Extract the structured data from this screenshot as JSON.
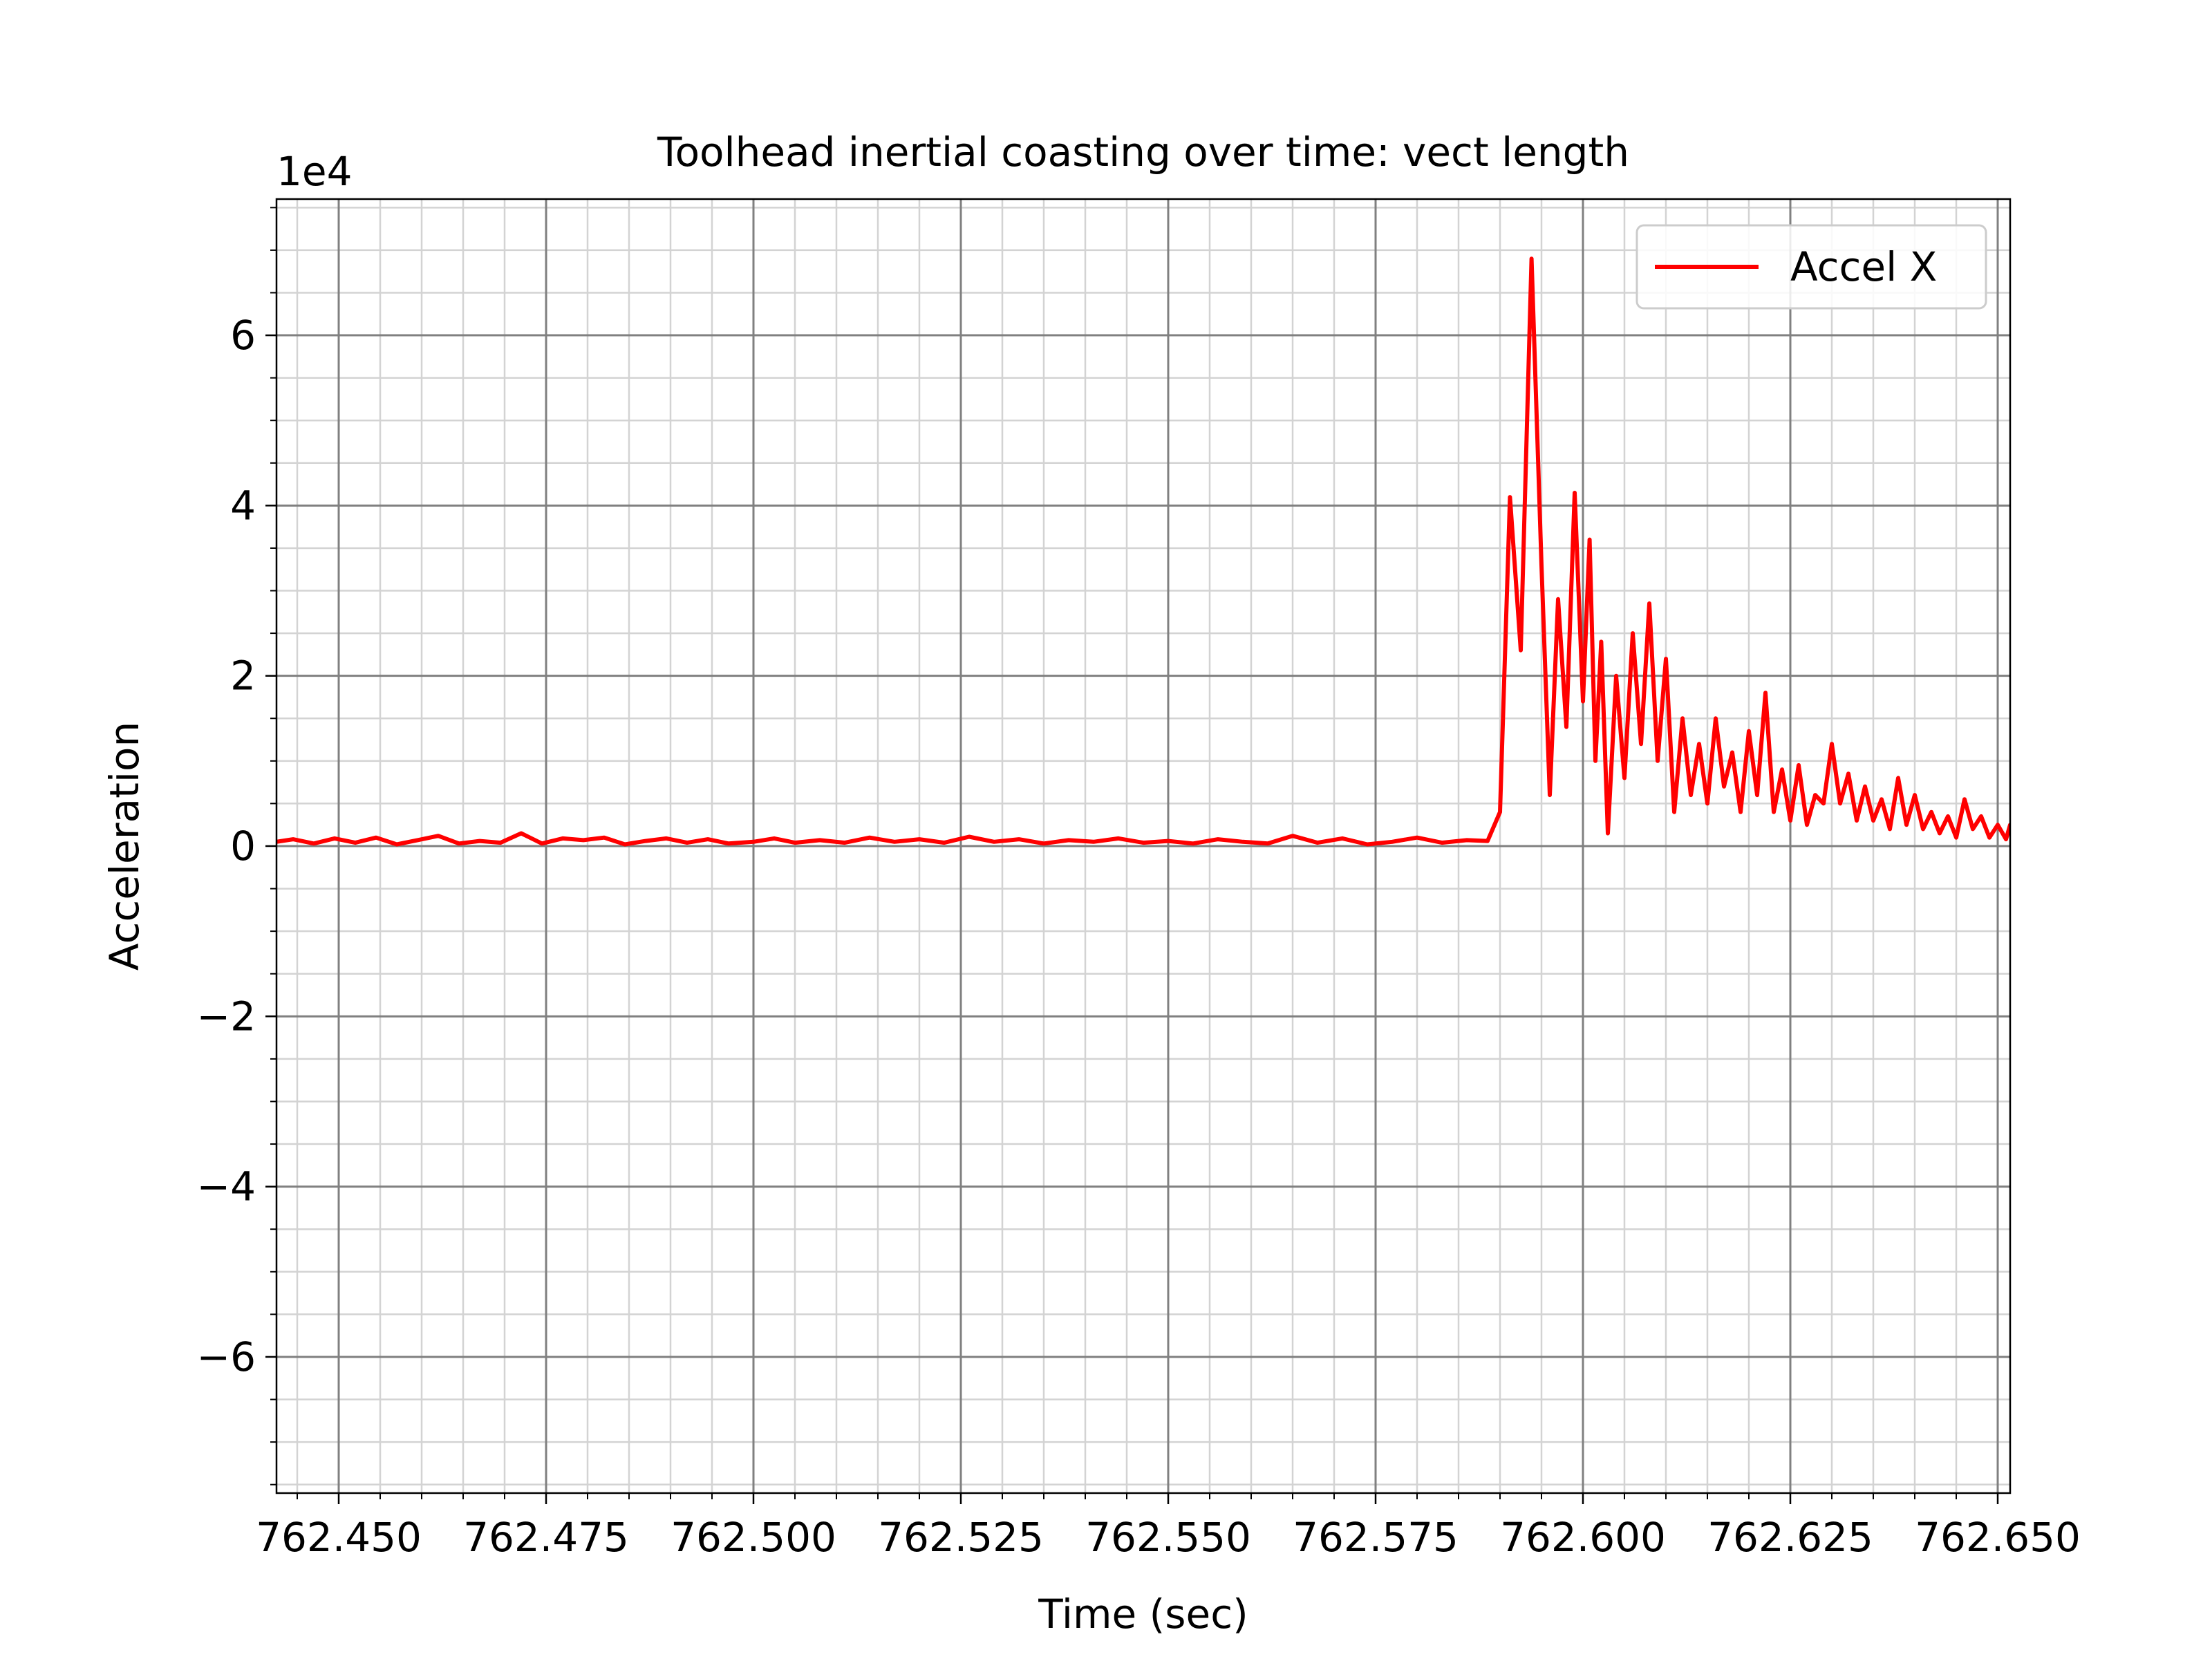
{
  "chart_data": {
    "type": "line",
    "title": "Toolhead inertial coasting over time: vect length",
    "xlabel": "Time (sec)",
    "ylabel": "Acceleration",
    "y_offset_label": "1e4",
    "xlim": [
      762.4425,
      762.6515
    ],
    "ylim": [
      -7.6,
      7.6
    ],
    "x_ticks": [
      762.45,
      762.475,
      762.5,
      762.525,
      762.55,
      762.575,
      762.6,
      762.625,
      762.65
    ],
    "x_tick_labels": [
      "762.450",
      "762.475",
      "762.500",
      "762.525",
      "762.550",
      "762.575",
      "762.600",
      "762.625",
      "762.650"
    ],
    "y_ticks": [
      -6,
      -4,
      -2,
      0,
      2,
      4,
      6
    ],
    "y_tick_labels": [
      "−6",
      "−4",
      "−2",
      "0",
      "2",
      "4",
      "6"
    ],
    "y_units_multiplier": 10000,
    "grid": {
      "major": true,
      "minor": true
    },
    "legend": {
      "placement": "top-right",
      "entries": [
        "Accel X"
      ]
    },
    "series": [
      {
        "name": "Accel X",
        "color": "#ff0000",
        "points": [
          [
            762.4425,
            0.05
          ],
          [
            762.4445,
            0.08
          ],
          [
            762.447,
            0.03
          ],
          [
            762.4495,
            0.09
          ],
          [
            762.452,
            0.04
          ],
          [
            762.4545,
            0.1
          ],
          [
            762.457,
            0.02
          ],
          [
            762.4595,
            0.07
          ],
          [
            762.462,
            0.12
          ],
          [
            762.4645,
            0.03
          ],
          [
            762.467,
            0.06
          ],
          [
            762.4695,
            0.04
          ],
          [
            762.472,
            0.15
          ],
          [
            762.4745,
            0.03
          ],
          [
            762.477,
            0.09
          ],
          [
            762.4795,
            0.07
          ],
          [
            762.482,
            0.1
          ],
          [
            762.4845,
            0.02
          ],
          [
            762.487,
            0.06
          ],
          [
            762.4895,
            0.09
          ],
          [
            762.492,
            0.04
          ],
          [
            762.4945,
            0.08
          ],
          [
            762.497,
            0.03
          ],
          [
            762.5,
            0.05
          ],
          [
            762.5025,
            0.09
          ],
          [
            762.505,
            0.04
          ],
          [
            762.508,
            0.07
          ],
          [
            762.511,
            0.04
          ],
          [
            762.514,
            0.1
          ],
          [
            762.517,
            0.05
          ],
          [
            762.52,
            0.08
          ],
          [
            762.523,
            0.04
          ],
          [
            762.526,
            0.11
          ],
          [
            762.529,
            0.05
          ],
          [
            762.532,
            0.08
          ],
          [
            762.535,
            0.03
          ],
          [
            762.538,
            0.07
          ],
          [
            762.541,
            0.05
          ],
          [
            762.544,
            0.09
          ],
          [
            762.547,
            0.04
          ],
          [
            762.55,
            0.06
          ],
          [
            762.553,
            0.03
          ],
          [
            762.556,
            0.08
          ],
          [
            762.559,
            0.05
          ],
          [
            762.562,
            0.03
          ],
          [
            762.565,
            0.12
          ],
          [
            762.568,
            0.04
          ],
          [
            762.571,
            0.09
          ],
          [
            762.574,
            0.02
          ],
          [
            762.577,
            0.05
          ],
          [
            762.58,
            0.1
          ],
          [
            762.583,
            0.04
          ],
          [
            762.586,
            0.07
          ],
          [
            762.5885,
            0.06
          ],
          [
            762.59,
            0.4
          ],
          [
            762.5912,
            4.1
          ],
          [
            762.5925,
            2.3
          ],
          [
            762.5938,
            6.9
          ],
          [
            762.595,
            3.3
          ],
          [
            762.596,
            0.6
          ],
          [
            762.597,
            2.9
          ],
          [
            762.598,
            1.4
          ],
          [
            762.599,
            4.15
          ],
          [
            762.6,
            1.7
          ],
          [
            762.6008,
            3.6
          ],
          [
            762.6015,
            1.0
          ],
          [
            762.6022,
            2.4
          ],
          [
            762.603,
            0.15
          ],
          [
            762.604,
            2.0
          ],
          [
            762.605,
            0.8
          ],
          [
            762.606,
            2.5
          ],
          [
            762.607,
            1.2
          ],
          [
            762.608,
            2.85
          ],
          [
            762.609,
            1.0
          ],
          [
            762.61,
            2.2
          ],
          [
            762.611,
            0.4
          ],
          [
            762.612,
            1.5
          ],
          [
            762.613,
            0.6
          ],
          [
            762.614,
            1.2
          ],
          [
            762.615,
            0.5
          ],
          [
            762.616,
            1.5
          ],
          [
            762.617,
            0.7
          ],
          [
            762.618,
            1.1
          ],
          [
            762.619,
            0.4
          ],
          [
            762.62,
            1.35
          ],
          [
            762.621,
            0.6
          ],
          [
            762.622,
            1.8
          ],
          [
            762.623,
            0.4
          ],
          [
            762.624,
            0.9
          ],
          [
            762.625,
            0.3
          ],
          [
            762.626,
            0.95
          ],
          [
            762.627,
            0.25
          ],
          [
            762.628,
            0.6
          ],
          [
            762.629,
            0.5
          ],
          [
            762.63,
            1.2
          ],
          [
            762.631,
            0.5
          ],
          [
            762.632,
            0.85
          ],
          [
            762.633,
            0.3
          ],
          [
            762.634,
            0.7
          ],
          [
            762.635,
            0.3
          ],
          [
            762.636,
            0.55
          ],
          [
            762.637,
            0.2
          ],
          [
            762.638,
            0.8
          ],
          [
            762.639,
            0.25
          ],
          [
            762.64,
            0.6
          ],
          [
            762.641,
            0.2
          ],
          [
            762.642,
            0.4
          ],
          [
            762.643,
            0.15
          ],
          [
            762.644,
            0.35
          ],
          [
            762.645,
            0.1
          ],
          [
            762.646,
            0.55
          ],
          [
            762.647,
            0.2
          ],
          [
            762.648,
            0.35
          ],
          [
            762.649,
            0.1
          ],
          [
            762.65,
            0.25
          ],
          [
            762.651,
            0.08
          ],
          [
            762.6515,
            0.25
          ]
        ]
      }
    ]
  }
}
